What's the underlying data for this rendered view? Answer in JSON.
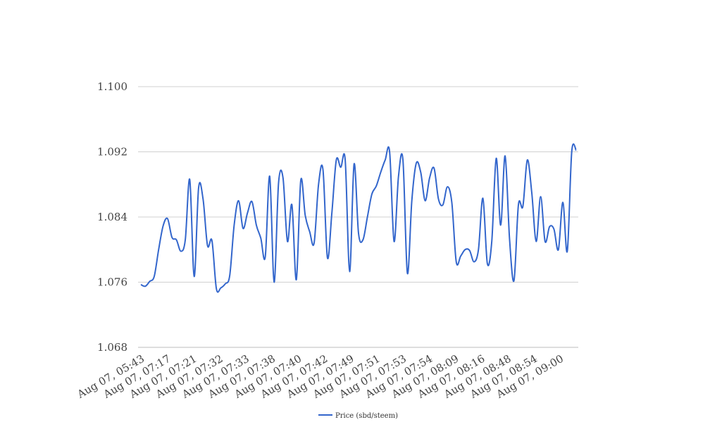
{
  "chart_data": {
    "type": "line",
    "title": "",
    "xlabel": "",
    "ylabel": "",
    "ylim": [
      1.068,
      1.1
    ],
    "yticks": [
      "1.068",
      "1.076",
      "1.084",
      "1.092",
      "1.100"
    ],
    "grid": true,
    "legend_position": "bottom",
    "x_tick_labels": [
      "Aug 07, 05:43",
      "Aug 07, 07:17",
      "Aug 07, 07:21",
      "Aug 07, 07:32",
      "Aug 07, 07:33",
      "Aug 07, 07:38",
      "Aug 07, 07:40",
      "Aug 07, 07:42",
      "Aug 07, 07:49",
      "Aug 07, 07:51",
      "Aug 07, 07:53",
      "Aug 07, 07:54",
      "Aug 07, 08:09",
      "Aug 07, 08:16",
      "Aug 07, 08:48",
      "Aug 07, 08:54",
      "Aug 07, 09:00"
    ],
    "series": [
      {
        "name": "Price (sbd/steem)",
        "color": "#3366cc",
        "values": [
          1.0757,
          1.0755,
          1.0761,
          1.0767,
          1.08,
          1.0829,
          1.0838,
          1.0815,
          1.0812,
          1.0798,
          1.0812,
          1.0886,
          1.0767,
          1.0876,
          1.0862,
          1.0805,
          1.0811,
          1.0752,
          1.0753,
          1.0758,
          1.0768,
          1.083,
          1.086,
          1.0826,
          1.0845,
          1.0859,
          1.083,
          1.0814,
          1.0791,
          1.089,
          1.076,
          1.0882,
          1.0888,
          1.081,
          1.0855,
          1.0763,
          1.0885,
          1.0842,
          1.0822,
          1.0808,
          1.088,
          1.0898,
          1.079,
          1.0845,
          1.091,
          1.0901,
          1.091,
          1.0773,
          1.0905,
          1.082,
          1.0812,
          1.084,
          1.0868,
          1.0878,
          1.0895,
          1.091,
          1.092,
          1.081,
          1.089,
          1.091,
          1.0771,
          1.086,
          1.0906,
          1.0895,
          1.086,
          1.0888,
          1.09,
          1.0862,
          1.0855,
          1.0877,
          1.0858,
          1.0785,
          1.0792,
          1.08,
          1.0799,
          1.0785,
          1.08,
          1.0863,
          1.0783,
          1.081,
          1.0912,
          1.083,
          1.0915,
          1.0813,
          1.0762,
          1.0855,
          1.0853,
          1.091,
          1.087,
          1.081,
          1.0865,
          1.081,
          1.0828,
          1.0825,
          1.08,
          1.0858,
          1.0798,
          1.092,
          1.0922
        ]
      }
    ]
  }
}
